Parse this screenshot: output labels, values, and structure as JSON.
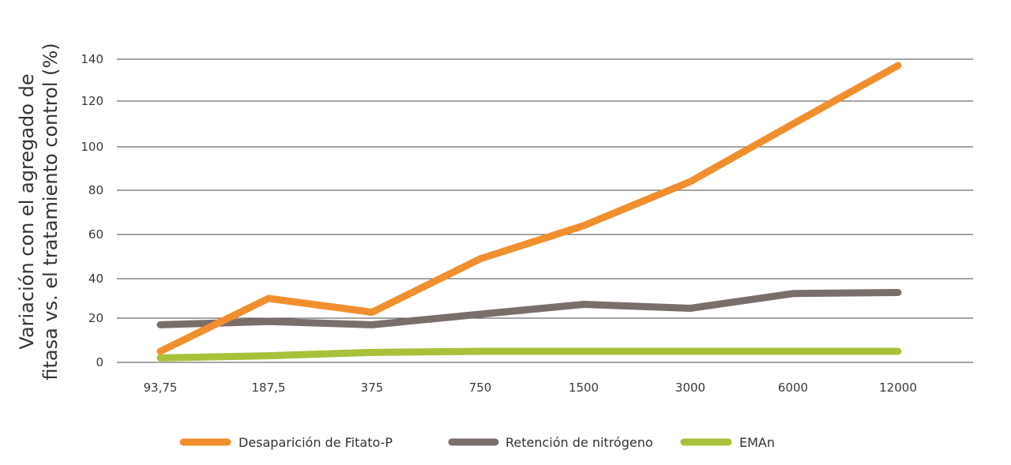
{
  "chart_data": {
    "type": "line",
    "title": "",
    "xlabel": "",
    "ylabel_lines": [
      "Variación con el agregado de",
      "fitasa vs. el tratamiento control (%)"
    ],
    "categories": [
      "93,75",
      "187,5",
      "375",
      "750",
      "1500",
      "3000",
      "6000",
      "12000"
    ],
    "yticks": [
      {
        "value": 0,
        "label": "0"
      },
      {
        "value": 20,
        "label": "20"
      },
      {
        "value": 40,
        "label": "40"
      },
      {
        "value": 60,
        "label": "60"
      },
      {
        "value": 80,
        "label": "80"
      },
      {
        "value": 100,
        "label": "100"
      },
      {
        "value": 120,
        "label": "120"
      },
      {
        "value": 140,
        "label": "140"
      }
    ],
    "ylim": [
      0,
      140
    ],
    "grid": true,
    "legend_position": "bottom",
    "series": [
      {
        "name": "Desaparición de Fitato-P",
        "color": "#F18F2E",
        "values": [
          5,
          30,
          23,
          49,
          64,
          84,
          110,
          137
        ]
      },
      {
        "name": "Retención de nitrógeno",
        "color": "#7A6E6B",
        "values": [
          17,
          18.5,
          17,
          22,
          27,
          25,
          32.5,
          33
        ]
      },
      {
        "name": "EMAn",
        "color": "#A7C23A",
        "values": [
          2,
          3,
          4.5,
          5,
          5,
          5,
          5,
          5
        ]
      }
    ]
  }
}
